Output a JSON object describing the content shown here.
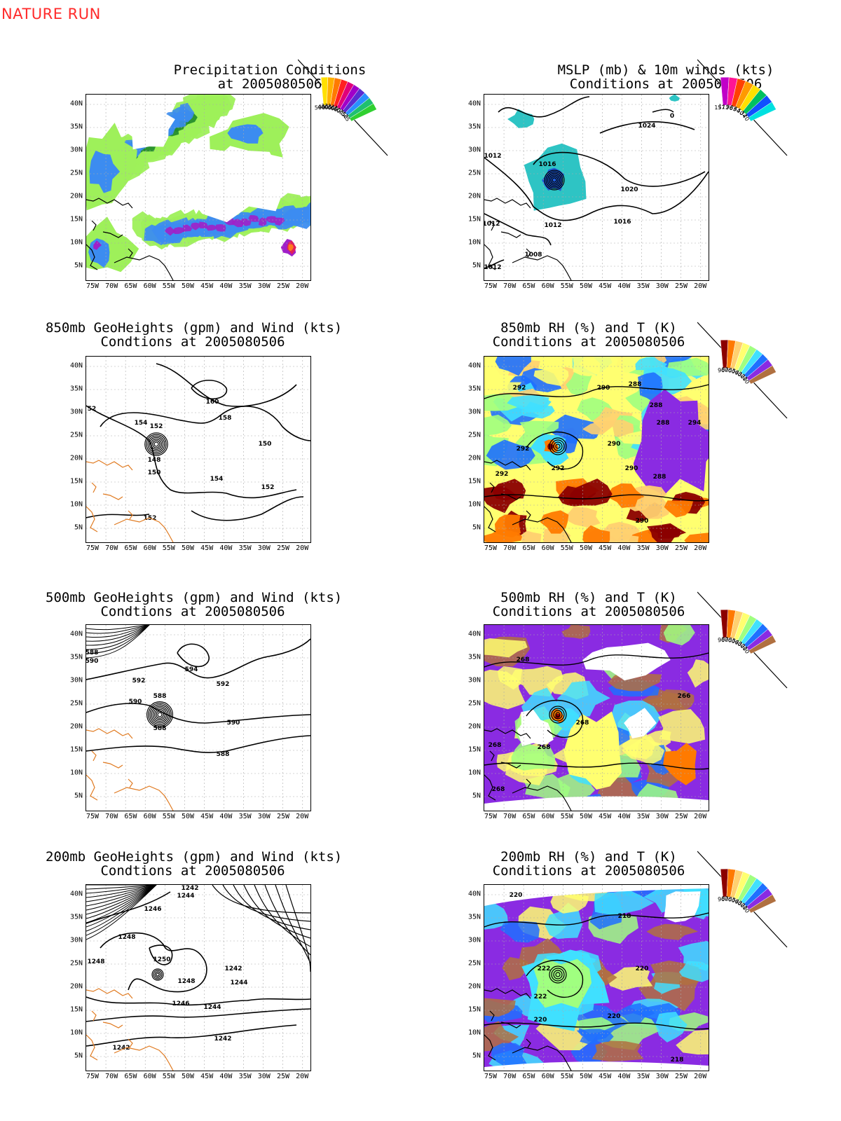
{
  "header": {
    "label": "NATURE RUN"
  },
  "axes": {
    "lat_ticks": [
      "40N",
      "35N",
      "30N",
      "25N",
      "20N",
      "15N",
      "10N",
      "5N"
    ],
    "lon_ticks": [
      "75W",
      "70W",
      "65W",
      "60W",
      "55W",
      "50W",
      "45W",
      "40W",
      "35W",
      "30W",
      "25W",
      "20W"
    ]
  },
  "panels": [
    {
      "id": "precip",
      "title1": "Precipitation Conditions",
      "title2": "at 2005080506",
      "legend": [
        "500",
        "400",
        "300",
        "250",
        "200",
        "150",
        "100",
        "75",
        "50",
        "25"
      ],
      "legend_colors": [
        "#ffe000",
        "#ffb000",
        "#ff7a00",
        "#ff2020",
        "#e0007a",
        "#a000c8",
        "#5a2cd0",
        "#2a90ff",
        "#20c070",
        "#30d030"
      ]
    },
    {
      "id": "mslp",
      "title1": "MSLP (mb) & 10m winds (kts)",
      "title2": "Conditions at 2005080506",
      "legend": [
        "157",
        "113",
        "96",
        "83",
        "64",
        "50",
        "34",
        "20"
      ],
      "legend_colors": [
        "#c000c8",
        "#ff1493",
        "#ff4000",
        "#ff9a00",
        "#ffe000",
        "#00c060",
        "#1050ff",
        "#00e0e0"
      ],
      "contour_labels": [
        "1012",
        "1016",
        "1024",
        "0",
        "1020",
        "1016",
        "1012",
        "1012",
        "1008",
        "1012"
      ]
    },
    {
      "id": "gh850",
      "title1": "850mb GeoHeights (gpm) and Wind (kts)",
      "title2": "Condtions at 2005080506",
      "contour_labels": [
        "52",
        "160",
        "154",
        "152",
        "158",
        "150",
        "148",
        "150",
        "154",
        "152",
        "152"
      ]
    },
    {
      "id": "rh850",
      "title1": "850mb RH (%) and T (K)",
      "title2": "Conditions at 2005080506",
      "legend": [
        "90",
        "80",
        "70",
        "60",
        "50",
        "40",
        "30",
        "20",
        "10"
      ],
      "legend_colors": [
        "#8b0000",
        "#ff7a00",
        "#ffd070",
        "#ffff70",
        "#a0ff80",
        "#40e0ff",
        "#1e70ff",
        "#8a2be2",
        "#b07040"
      ],
      "contour_labels": [
        "292",
        "290",
        "288",
        "288",
        "288",
        "294",
        "290",
        "292",
        "292",
        "292",
        "290",
        "288",
        "290"
      ]
    },
    {
      "id": "gh500",
      "title1": "500mb GeoHeights (gpm) and Wind (kts)",
      "title2": "Condtions at 2005080506",
      "contour_labels": [
        "588",
        "590",
        "594",
        "592",
        "592",
        "590",
        "588",
        "588",
        "590",
        "588"
      ]
    },
    {
      "id": "rh500",
      "title1": "500mb RH (%) and T (K)",
      "title2": "Conditions at 2005080506",
      "legend": [
        "90",
        "80",
        "70",
        "60",
        "50",
        "40",
        "30",
        "20",
        "10"
      ],
      "legend_colors": [
        "#8b0000",
        "#ff7a00",
        "#ffd070",
        "#ffff70",
        "#a0ff80",
        "#40e0ff",
        "#1e70ff",
        "#8a2be2",
        "#b07040"
      ],
      "contour_labels": [
        "268",
        "266",
        "268",
        "268",
        "268",
        "268"
      ]
    },
    {
      "id": "gh200",
      "title1": "200mb GeoHeights (gpm) and Wind (kts)",
      "title2": "Condtions at 2005080506",
      "contour_labels": [
        "1242",
        "1244",
        "1246",
        "1248",
        "1248",
        "1250",
        "1248",
        "1242",
        "1244",
        "1246",
        "1244",
        "1242",
        "1242"
      ]
    },
    {
      "id": "rh200",
      "title1": "200mb RH (%) and T (K)",
      "title2": "Conditions at 2005080506",
      "legend": [
        "90",
        "80",
        "70",
        "60",
        "50",
        "40",
        "30",
        "20",
        "10"
      ],
      "legend_colors": [
        "#8b0000",
        "#ff7a00",
        "#ffd070",
        "#ffff70",
        "#a0ff80",
        "#40e0ff",
        "#1e70ff",
        "#8a2be2",
        "#b07040"
      ],
      "contour_labels": [
        "220",
        "218",
        "220",
        "222",
        "222",
        "220",
        "220",
        "218"
      ]
    }
  ]
}
